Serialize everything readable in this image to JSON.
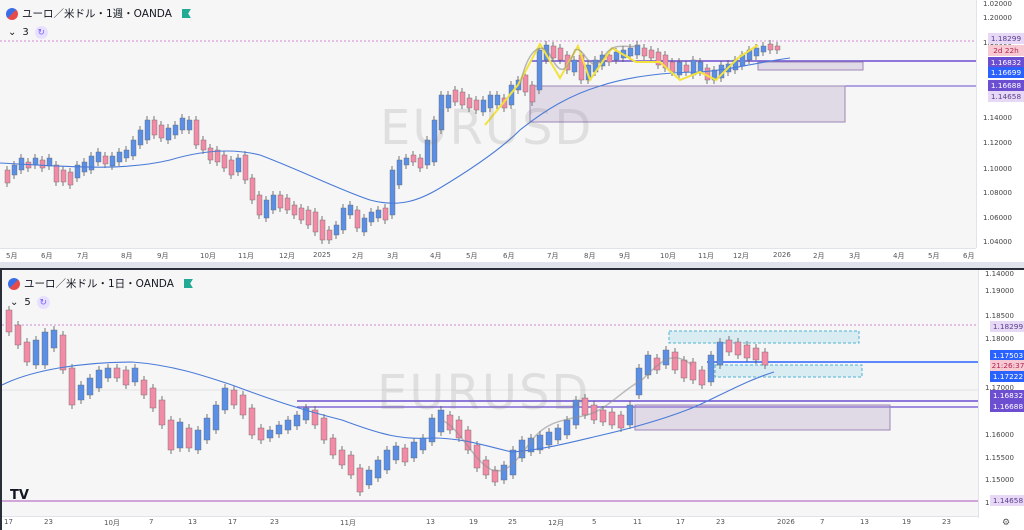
{
  "top_pane": {
    "title": "ユーロ／米ドル・1週・OANDA",
    "indicator_count": "3",
    "watermark": "EURUSD",
    "price_ticks": [
      "1.20000",
      "1.18000",
      "1.14000",
      "1.12000",
      "1.10000",
      "1.08000",
      "1.06000",
      "1.04000",
      "1.02000"
    ],
    "price_tags": [
      "1.18299",
      "2d 22h",
      "1.16832",
      "1.16699",
      "1.16688",
      "1.14658"
    ],
    "time_ticks": [
      "5月",
      "6月",
      "7月",
      "8月",
      "9月",
      "10月",
      "11月",
      "12月",
      "2025",
      "2月",
      "3月",
      "4月",
      "5月",
      "6月",
      "7月",
      "8月",
      "9月",
      "10月",
      "11月",
      "12月",
      "2026",
      "2月",
      "3月",
      "4月",
      "5月",
      "6月"
    ]
  },
  "bottom_pane": {
    "title": "ユーロ／米ドル・1日・OANDA",
    "indicator_count": "5",
    "watermark": "EURUSD",
    "price_ticks": [
      "1.19000",
      "1.18500",
      "1.18000",
      "1.17000",
      "1.16000",
      "1.15500",
      "1.15000",
      "1.14500",
      "1.14000"
    ],
    "price_tags": [
      "1.18299",
      "1.17503",
      "21:26:37",
      "1.17222",
      "1.16832",
      "1.16688",
      "1.14658"
    ],
    "time_ticks": [
      "17",
      "23",
      "10月",
      "7",
      "13",
      "17",
      "23",
      "11月",
      "13",
      "19",
      "25",
      "12月",
      "5",
      "11",
      "17",
      "23",
      "2026",
      "7",
      "13",
      "19",
      "23"
    ]
  },
  "logo": "TV",
  "colors": {
    "up": "#5b8fe6",
    "down": "#f28ca6",
    "ma": "#4a7bd8",
    "zigzag": "#f3e23a",
    "zone_purple": "#b8a6c9",
    "zone_blue": "#7fd0e8",
    "line_purple": "#6c4ed1"
  }
}
